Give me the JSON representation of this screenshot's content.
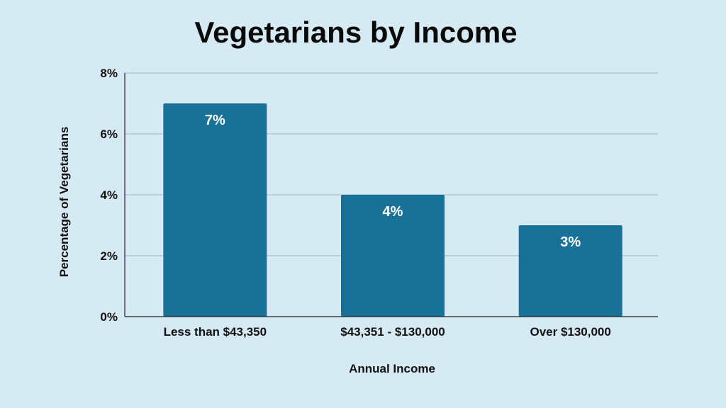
{
  "chart_data": {
    "type": "bar",
    "title": "Vegetarians by Income",
    "xlabel": "Annual Income",
    "ylabel": "Percentage of Vegetarians",
    "categories": [
      "Less than $43,350",
      "$43,351 - $130,000",
      "Over $130,000"
    ],
    "values": [
      7,
      4,
      3
    ],
    "data_labels": [
      "7%",
      "4%",
      "3%"
    ],
    "y_ticks": [
      0,
      2,
      4,
      6,
      8
    ],
    "y_tick_labels": [
      "0%",
      "2%",
      "4%",
      "6%",
      "8%"
    ],
    "ylim": [
      0,
      8
    ],
    "grid": true,
    "legend": "none"
  },
  "colors": {
    "background": "#d6eaf4",
    "bar": "#1a7198",
    "grid": "#9fb8c6",
    "axis": "#222222"
  }
}
